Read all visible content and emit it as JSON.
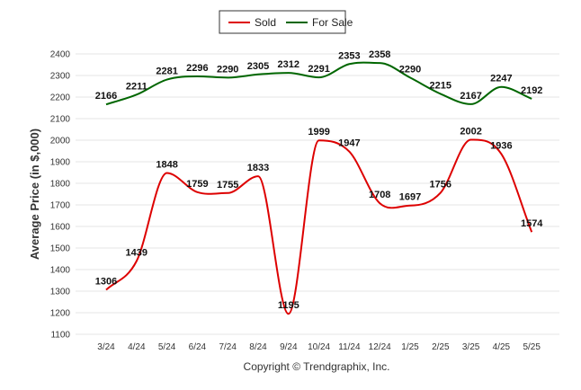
{
  "chart_data": {
    "type": "line",
    "categories": [
      "3/24",
      "4/24",
      "5/24",
      "6/24",
      "7/24",
      "8/24",
      "9/24",
      "10/24",
      "11/24",
      "12/24",
      "1/25",
      "2/25",
      "3/25",
      "4/25",
      "5/25"
    ],
    "series": [
      {
        "name": "Sold",
        "color": "#dd0000",
        "values": [
          1306,
          1439,
          1848,
          1759,
          1755,
          1833,
          1195,
          1999,
          1947,
          1708,
          1697,
          1756,
          2002,
          1936,
          1574
        ]
      },
      {
        "name": "For Sale",
        "color": "#006600",
        "values": [
          2166,
          2211,
          2281,
          2296,
          2290,
          2305,
          2312,
          2291,
          2353,
          2358,
          2290,
          2215,
          2167,
          2247,
          2192
        ]
      }
    ],
    "ylabel": "Average Price (in $,000)",
    "xlabel": "",
    "ylim": [
      1100,
      2400
    ],
    "yticks": [
      1100,
      1200,
      1300,
      1400,
      1500,
      1600,
      1700,
      1800,
      1900,
      2000,
      2100,
      2200,
      2300,
      2400
    ],
    "grid": true,
    "legend_position": "top-center",
    "smooth": true
  },
  "footer": {
    "copyright": "Copyright © Trendgraphix, Inc."
  }
}
